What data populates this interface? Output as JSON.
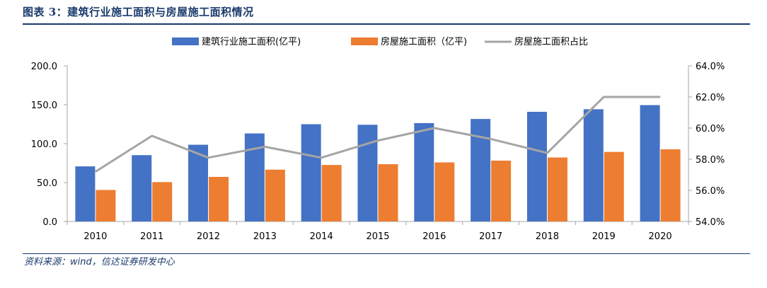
{
  "title": "图表 3：建筑行业施工面积与房屋施工面积情况",
  "source": "资料来源：wind，信达证券研发中心",
  "colors": {
    "series1": "#4472c4",
    "series2": "#ed7d31",
    "series3": "#a5a5a5",
    "title": "#1a3a6b"
  },
  "chart_data": {
    "type": "bar",
    "categories": [
      "2010",
      "2011",
      "2012",
      "2013",
      "2014",
      "2015",
      "2016",
      "2017",
      "2018",
      "2019",
      "2020"
    ],
    "series": [
      {
        "name": "建筑行业施工面积(亿平)",
        "type": "bar",
        "axis": "left",
        "values": [
          70.8,
          85.2,
          98.6,
          113.1,
          125.0,
          124.3,
          126.4,
          131.7,
          140.9,
          144.2,
          149.5
        ]
      },
      {
        "name": "房屋施工面积（亿平)",
        "type": "bar",
        "axis": "left",
        "values": [
          40.5,
          50.6,
          57.3,
          66.6,
          72.6,
          73.6,
          75.9,
          78.2,
          82.2,
          89.4,
          92.7
        ]
      },
      {
        "name": "房屋施工面积占比",
        "type": "line",
        "axis": "right",
        "values": [
          57.2,
          59.5,
          58.1,
          58.8,
          58.1,
          59.2,
          60.0,
          59.3,
          58.4,
          62.0,
          62.0
        ]
      }
    ],
    "y_left": {
      "range": [
        0,
        200
      ],
      "ticks": [
        "0.0",
        "50.0",
        "100.0",
        "150.0",
        "200.0"
      ]
    },
    "y_right": {
      "range": [
        54,
        64
      ],
      "ticks": [
        "54.0%",
        "56.0%",
        "58.0%",
        "60.0%",
        "62.0%",
        "64.0%"
      ]
    },
    "legend_position": "top",
    "grid": false
  }
}
